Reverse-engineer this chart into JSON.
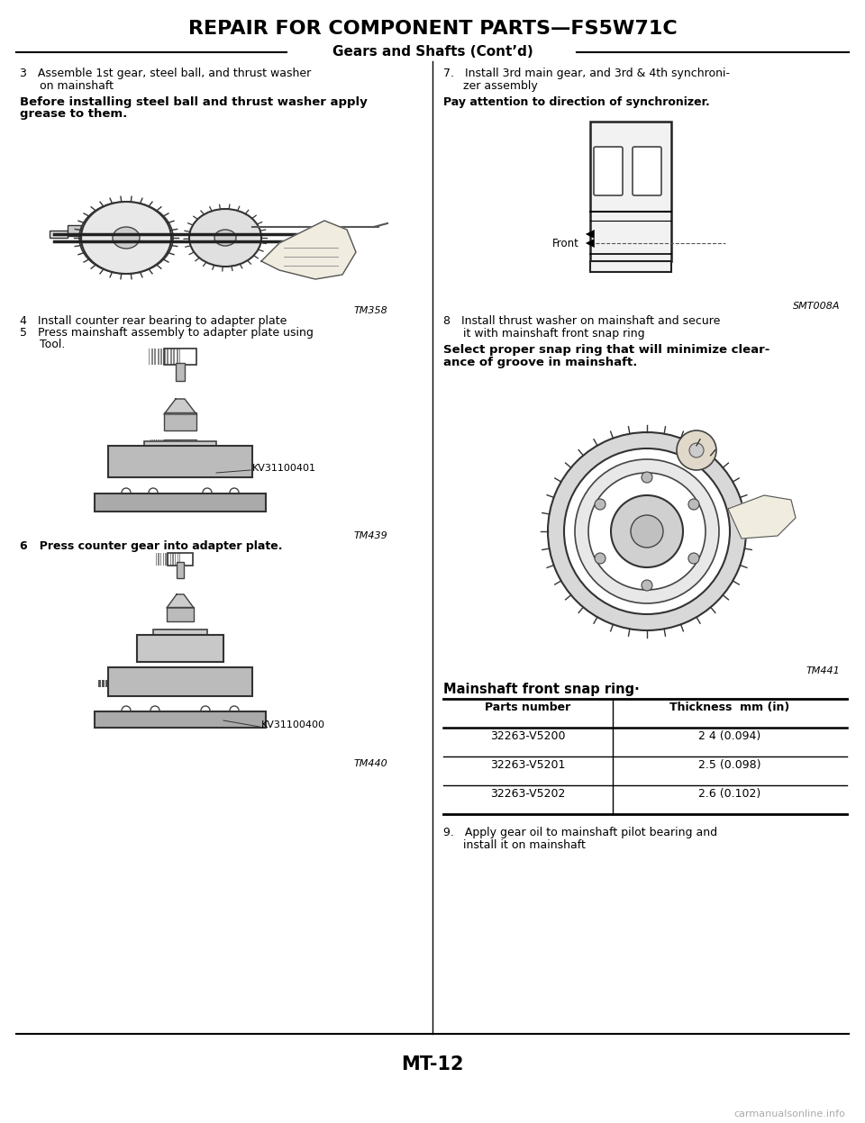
{
  "title": "REPAIR FOR COMPONENT PARTS—FS5W71C",
  "subtitle": "Gears and Shafts (Cont’d)",
  "bg_color": "#ffffff",
  "page_number": "MT-12",
  "watermark": "carmanualsonline.info",
  "left_column": {
    "step3_header": "3   Assemble 1st gear, steel ball, and thrust washer\n    on mainshaft",
    "step3_bold": "Before installing steel ball and thrust washer apply\ngrease to them.",
    "step3_img_label": "TM358",
    "step4_text": "4   Install counter rear bearing to adapter plate",
    "step5_text": "5   Press mainshaft assembly to adapter plate using\n    Tool.",
    "step5_img_label": "KV31100401",
    "step5_img_label2": "TM439",
    "step6_text": "6   Press counter gear into adapter plate.",
    "step6_img_label": "KV31100400",
    "step6_img_label2": "TM440"
  },
  "right_column": {
    "step7_header": "7.   Install 3rd main gear, and 3rd & 4th synchroni-\n     zer assembly",
    "step7_bold": "Pay attention to direction of synchronizer.",
    "step7_front_label": "Front",
    "step7_img_label": "SMT008A",
    "step8_header": "8   Install thrust washer on mainshaft and secure\n    it with mainshaft front snap ring",
    "step8_bold": "Select proper snap ring that will minimize clear-\nance of groove in mainshaft.",
    "step8_img_label": "TM441",
    "table_title": "Mainshaft front snap ring·",
    "table_col1": "Parts number",
    "table_col2": "Thickness  mm (in)",
    "table_rows": [
      [
        "32263-V5200",
        "2 4 (0.094)"
      ],
      [
        "32263-V5201",
        "2.5 (0.098)"
      ],
      [
        "32263-V5202",
        "2.6 (0.102)"
      ]
    ],
    "step9_text": "9.   Apply gear oil to mainshaft pilot bearing and\n     install it on mainshaft"
  }
}
